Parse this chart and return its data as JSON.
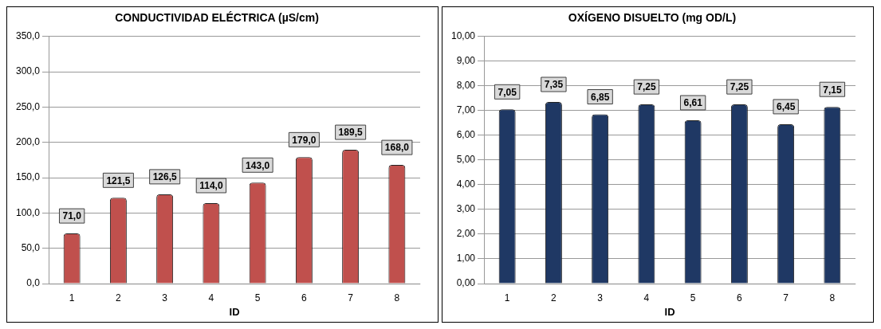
{
  "chart_data": [
    {
      "type": "bar",
      "title": "CONDUCTIVIDAD ELÉCTRICA (µS/cm)",
      "xlabel": "ID",
      "categories": [
        "1",
        "2",
        "3",
        "4",
        "5",
        "6",
        "7",
        "8"
      ],
      "color": "#c0504d",
      "values": [
        71.0,
        121.5,
        126.5,
        114.0,
        143.0,
        179.0,
        189.5,
        168.0
      ],
      "value_labels": [
        "71,0",
        "121,5",
        "126,5",
        "114,0",
        "143,0",
        "179,0",
        "189,5",
        "168,0"
      ],
      "ylim": [
        0,
        350
      ],
      "yticks": [
        {
          "value": 0,
          "label": "0,0"
        },
        {
          "value": 50,
          "label": "50,0"
        },
        {
          "value": 100,
          "label": "100,0"
        },
        {
          "value": 150,
          "label": "150,0"
        },
        {
          "value": 200,
          "label": "200,0"
        },
        {
          "value": 250,
          "label": "250,0"
        },
        {
          "value": 300,
          "label": "300,0"
        },
        {
          "value": 350,
          "label": "350,0"
        }
      ],
      "grid": "y",
      "legend": false
    },
    {
      "type": "bar",
      "title": "OXÍGENO DISUELTO (mg OD/L)",
      "xlabel": "ID",
      "categories": [
        "1",
        "2",
        "3",
        "4",
        "5",
        "6",
        "7",
        "8"
      ],
      "color": "#1f3864",
      "values": [
        7.05,
        7.35,
        6.85,
        7.25,
        6.61,
        7.25,
        6.45,
        7.15
      ],
      "value_labels": [
        "7,05",
        "7,35",
        "6,85",
        "7,25",
        "6,61",
        "7,25",
        "6,45",
        "7,15"
      ],
      "ylim": [
        0,
        10
      ],
      "yticks": [
        {
          "value": 0,
          "label": "0,00"
        },
        {
          "value": 1,
          "label": "1,00"
        },
        {
          "value": 2,
          "label": "2,00"
        },
        {
          "value": 3,
          "label": "3,00"
        },
        {
          "value": 4,
          "label": "4,00"
        },
        {
          "value": 5,
          "label": "5,00"
        },
        {
          "value": 6,
          "label": "6,00"
        },
        {
          "value": 7,
          "label": "7,00"
        },
        {
          "value": 8,
          "label": "8,00"
        },
        {
          "value": 9,
          "label": "9,00"
        },
        {
          "value": 10,
          "label": "10,00"
        }
      ],
      "grid": "y",
      "legend": false
    }
  ]
}
